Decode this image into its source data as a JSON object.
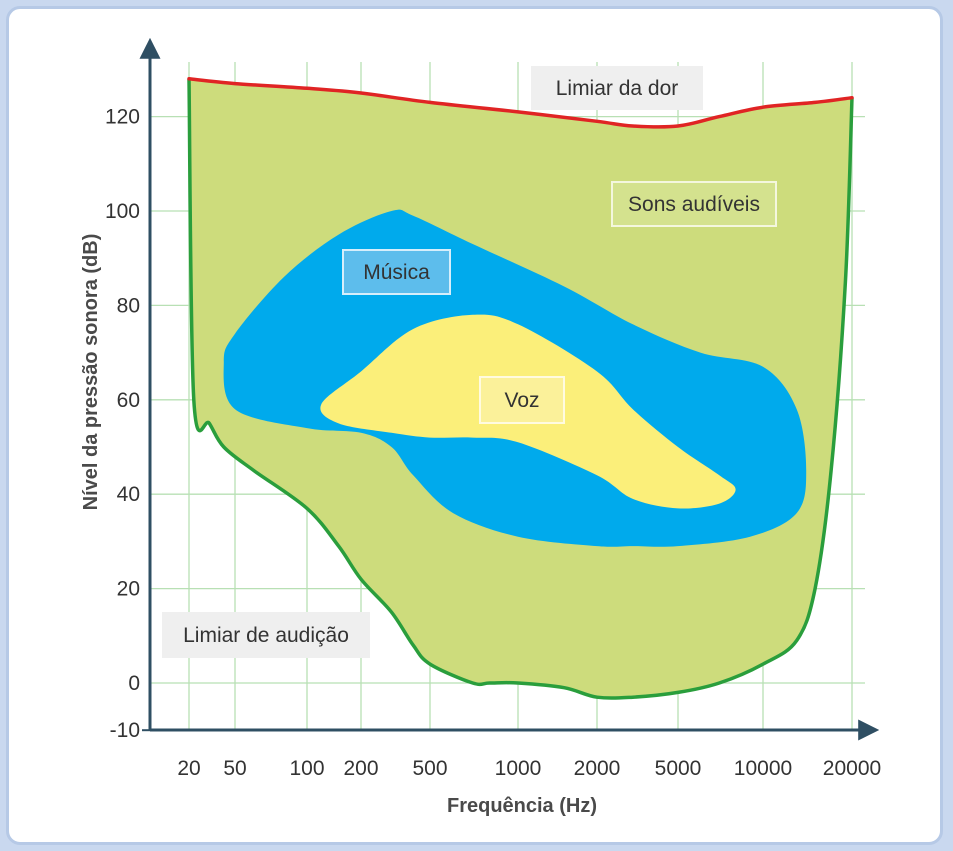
{
  "chart_data": {
    "type": "area",
    "xlabel": "Frequência (Hz)",
    "ylabel": "Nível da pressão sonora (dB)",
    "x_scale": "log",
    "x_ticks": [
      20,
      50,
      100,
      200,
      500,
      1000,
      2000,
      5000,
      10000,
      20000
    ],
    "y_ticks": [
      120,
      100,
      80,
      60,
      40,
      20,
      0,
      -10
    ],
    "ylim": [
      -10,
      130
    ],
    "grid": true,
    "annotations": [
      "Limiar da dor",
      "Sons audíveis",
      "Música",
      "Voz",
      "Limiar de audição"
    ],
    "regions": [
      {
        "name": "Sons audíveis",
        "color": "#cddc7c",
        "upper": {
          "x": [
            20,
            50,
            100,
            200,
            500,
            1000,
            2000,
            3000,
            5000,
            7000,
            10000,
            15000,
            20000
          ],
          "y": [
            128,
            127,
            126,
            125,
            123,
            121,
            119,
            118,
            118,
            120,
            122,
            123,
            124
          ]
        },
        "lower": {
          "x": [
            20,
            22,
            30,
            40,
            60,
            100,
            150,
            200,
            300,
            400,
            500,
            700,
            800,
            1000,
            1500,
            2000,
            3000,
            5000,
            7000,
            10000,
            13000,
            15000,
            17000,
            19000,
            20000
          ],
          "y": [
            128,
            60,
            55,
            50,
            45,
            37,
            29,
            22,
            15,
            8,
            4,
            0,
            0,
            0,
            -1,
            -3,
            -3,
            -2,
            0,
            4,
            9,
            20,
            45,
            85,
            124
          ]
        }
      },
      {
        "name": "Música",
        "color": "#00aaec",
        "outline": {
          "x": [
            40,
            50,
            80,
            150,
            300,
            400,
            700,
            1500,
            3000,
            6000,
            10000,
            13000,
            14000,
            13000,
            9000,
            5000,
            3000,
            2000,
            1000,
            600,
            400,
            300,
            200,
            100,
            50,
            40
          ],
          "y": [
            68,
            74,
            86,
            95,
            100,
            99,
            93,
            84,
            76,
            70,
            67,
            58,
            45,
            36,
            31,
            29,
            29,
            29,
            31,
            36,
            44,
            50,
            53,
            54,
            58,
            68
          ]
        }
      },
      {
        "name": "Voz",
        "color": "#fbef7a",
        "outline": {
          "x": [
            120,
            200,
            400,
            700,
            1000,
            2000,
            3000,
            5000,
            7000,
            8000,
            7000,
            5000,
            3000,
            2000,
            1000,
            700,
            500,
            300,
            150,
            120
          ],
          "y": [
            59,
            66,
            75,
            78,
            76,
            66,
            58,
            50,
            44,
            41,
            38,
            37,
            39,
            44,
            51,
            52,
            52,
            53,
            55,
            59
          ]
        }
      }
    ],
    "pain_threshold_color": "#e02424",
    "hearing_threshold_color": "#2a9e3c"
  }
}
